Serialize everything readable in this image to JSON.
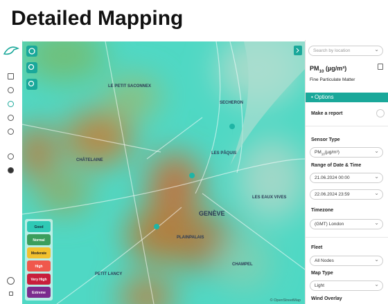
{
  "header": {
    "title": "Detailed Mapping"
  },
  "map": {
    "places": [
      "LE PETIT SACONNEX",
      "SECHERON",
      "LES PÂQUIS",
      "CHÂTELAINE",
      "GENÈVE",
      "PLAINPALAIS",
      "LES EAUX VIVES",
      "CHAMPEL",
      "PETIT LANCY"
    ],
    "attribution": "© OpenStreetMap",
    "legend": [
      "Good",
      "Normal",
      "Moderate",
      "High",
      "Very High",
      "Extreme"
    ]
  },
  "panel": {
    "search_placeholder": "Search by location",
    "pollutant": {
      "base": "PM",
      "sub": "10",
      "unit": "(µg/m³)"
    },
    "pollutant_description": "Fine Particulate Matter",
    "options": "Options",
    "make_report": "Make a report",
    "sensor_type": {
      "label": "Sensor Type",
      "value": {
        "base": "PM",
        "sub": "10",
        "unit": "(µg/m³)"
      }
    },
    "date_range": {
      "label": "Range of Date & Time",
      "start": "21.06.2024 00:00",
      "end": "22.06.2024 23:59"
    },
    "timezone": {
      "label": "Timezone",
      "value": "(GMT) London"
    },
    "fleet": {
      "label": "Fleet",
      "value": "All Nodes"
    },
    "map_type": {
      "label": "Map Type",
      "value": "Light"
    },
    "wind_overlay": {
      "label": "Wind Overlay"
    }
  }
}
